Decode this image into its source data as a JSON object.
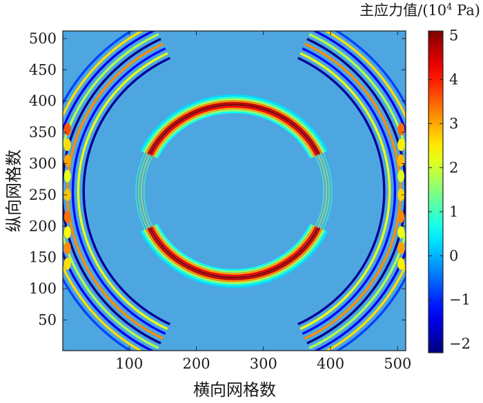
{
  "chart_data": {
    "type": "heatmap",
    "title": "",
    "xlabel": "横向网格数",
    "ylabel": "纵向网格数",
    "xlim": [
      1,
      512
    ],
    "ylim": [
      1,
      512
    ],
    "x_ticks": [
      100,
      200,
      300,
      400,
      500
    ],
    "y_ticks": [
      50,
      100,
      150,
      200,
      250,
      300,
      350,
      400,
      450,
      500
    ],
    "colorbar": {
      "title_prefix": "主应力值/(10",
      "title_exp": "4",
      "title_suffix": " Pa)",
      "range": [
        -2.2,
        5.1
      ],
      "ticks": [
        5,
        4,
        3,
        2,
        1,
        0,
        -1,
        -2
      ],
      "colormap": "jet",
      "colors": [
        "#00008f",
        "#0000ff",
        "#00ffff",
        "#ffff00",
        "#ff0000",
        "#800000"
      ]
    },
    "background_value": 0,
    "wave_patterns": [
      {
        "shape": "circular-ring",
        "center": [
          256,
          256
        ],
        "radius": 140,
        "peak_value": 5,
        "direction": "top-bottom"
      },
      {
        "shape": "arc-fronts",
        "position": "left-edge",
        "peak_value": 3.5
      },
      {
        "shape": "arc-fronts",
        "position": "right-edge",
        "peak_value": 3.5
      }
    ]
  }
}
